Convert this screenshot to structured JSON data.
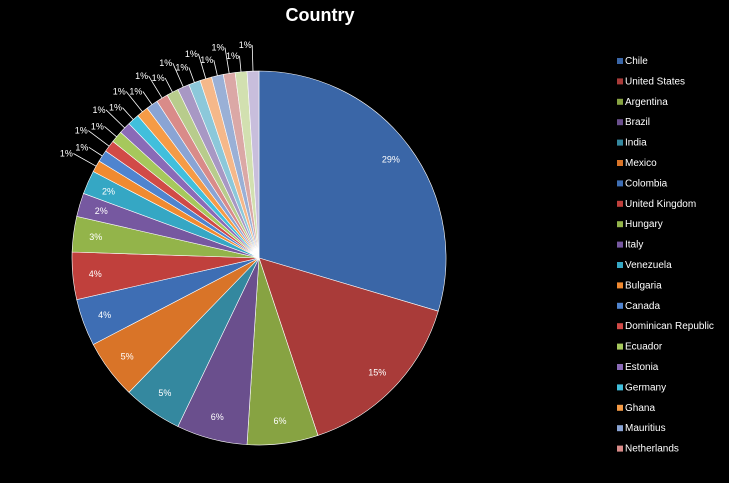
{
  "chart_data": {
    "type": "pie",
    "title": "Country",
    "legend_position": "right",
    "slices": [
      {
        "label": "Chile",
        "value": 29,
        "display": "29%",
        "color": "#3a66a7"
      },
      {
        "label": "United States",
        "value": 15,
        "display": "15%",
        "color": "#a93b39"
      },
      {
        "label": "Argentina",
        "value": 6,
        "display": "6%",
        "color": "#87a342"
      },
      {
        "label": "Brazil",
        "value": 6,
        "display": "6%",
        "color": "#6a4f8d"
      },
      {
        "label": "India",
        "value": 5,
        "display": "5%",
        "color": "#34889f"
      },
      {
        "label": "Mexico",
        "value": 5,
        "display": "5%",
        "color": "#d97428"
      },
      {
        "label": "Colombia",
        "value": 4,
        "display": "4%",
        "color": "#3e6eb4"
      },
      {
        "label": "United Kingdom",
        "value": 4,
        "display": "4%",
        "color": "#c0403c"
      },
      {
        "label": "Hungary",
        "value": 3,
        "display": "3%",
        "color": "#93b44a"
      },
      {
        "label": "Italy",
        "value": 2,
        "display": "2%",
        "color": "#7658a0"
      },
      {
        "label": "Venezuela",
        "value": 2,
        "display": "2%",
        "color": "#35a7c4"
      },
      {
        "label": "Bulgaria",
        "value": 1,
        "display": "1%",
        "color": "#f08a30"
      },
      {
        "label": "Canada",
        "value": 1,
        "display": "1%",
        "color": "#4f84cf"
      },
      {
        "label": "Dominican Republic",
        "value": 1,
        "display": "1%",
        "color": "#d14a47"
      },
      {
        "label": "Ecuador",
        "value": 1,
        "display": "1%",
        "color": "#a6c85c"
      },
      {
        "label": "Estonia",
        "value": 1,
        "display": "1%",
        "color": "#8a6ab7"
      },
      {
        "label": "Germany",
        "value": 1,
        "display": "1%",
        "color": "#41bfdc"
      },
      {
        "label": "Ghana",
        "value": 1,
        "display": "1%",
        "color": "#f59b46"
      },
      {
        "label": "Mauritius",
        "value": 1,
        "display": "1%",
        "color": "#8aa4d4"
      },
      {
        "label": "Netherlands",
        "value": 1,
        "display": "1%",
        "color": "#d98b89"
      },
      {
        "label": "",
        "value": 1,
        "display": "1%",
        "color": "#b8cc8c"
      },
      {
        "label": "",
        "value": 1,
        "display": "1%",
        "color": "#a898c4"
      },
      {
        "label": "",
        "value": 1,
        "display": "1%",
        "color": "#8cc8da"
      },
      {
        "label": "",
        "value": 1,
        "display": "1%",
        "color": "#f5b88a"
      },
      {
        "label": "",
        "value": 1,
        "display": "1%",
        "color": "#9ab0d6"
      },
      {
        "label": "",
        "value": 1,
        "display": "1%",
        "color": "#dba8a6"
      },
      {
        "label": "",
        "value": 1,
        "display": "1%",
        "color": "#d2e0b0"
      },
      {
        "label": "",
        "value": 1,
        "display": "1%",
        "color": "#c8bedc"
      }
    ]
  }
}
